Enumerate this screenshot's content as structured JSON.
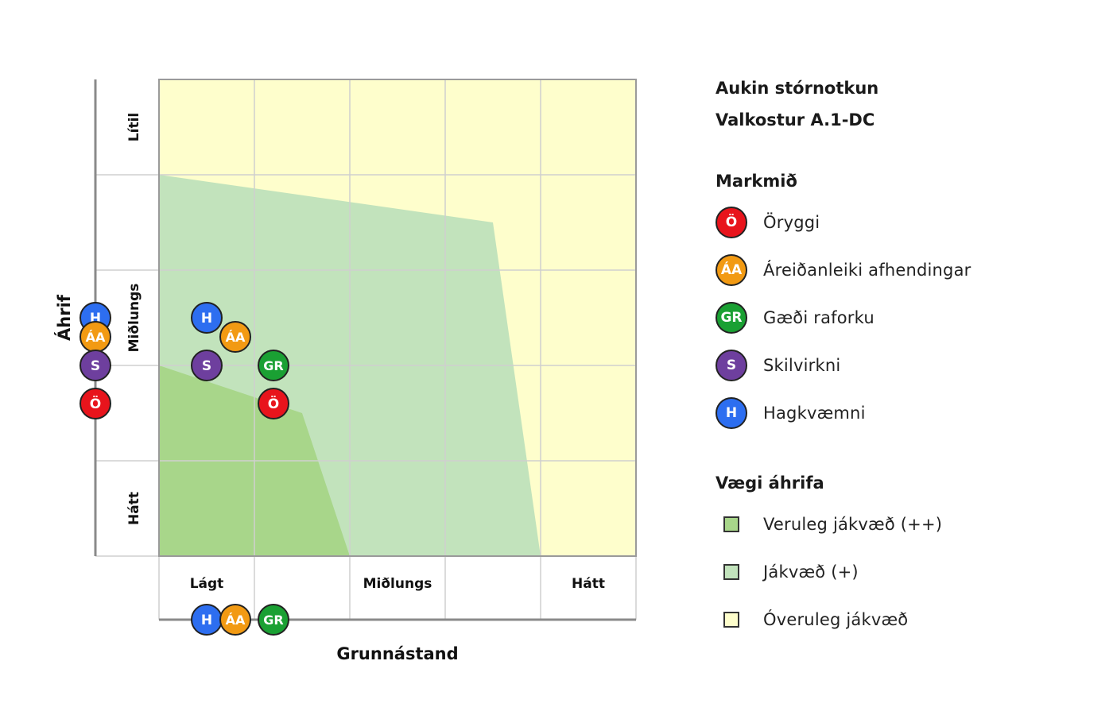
{
  "chart_data": {
    "type": "diagram",
    "x_axis_label": "Grunnástand",
    "y_axis_label": "Áhrif",
    "x_tick_labels": [
      "Lágt",
      "Miðlungs",
      "Hátt"
    ],
    "y_tick_labels": [
      "Lítil",
      "Miðlungs",
      "Hátt"
    ],
    "markers": [
      {
        "code": "H",
        "position": "left-axis"
      },
      {
        "code": "ÁA",
        "position": "left-axis"
      },
      {
        "code": "S",
        "position": "left-axis"
      },
      {
        "code": "Ö",
        "position": "left-axis"
      },
      {
        "code": "H",
        "position": "plot"
      },
      {
        "code": "ÁA",
        "position": "plot"
      },
      {
        "code": "S",
        "position": "plot"
      },
      {
        "code": "GR",
        "position": "plot"
      },
      {
        "code": "Ö",
        "position": "plot"
      },
      {
        "code": "H",
        "position": "bottom-axis"
      },
      {
        "code": "ÁA",
        "position": "bottom-axis"
      },
      {
        "code": "GR",
        "position": "bottom-axis"
      }
    ]
  },
  "legend": {
    "title_line1": "Aukin stórnotkun",
    "title_line2": "Valkostur A.1-DC",
    "markmid_title": "Markmið",
    "markmid_items": [
      {
        "code": "Ö",
        "label": "Öryggi",
        "color": "#e8141c"
      },
      {
        "code": "ÁA",
        "label": "Áreiðanleiki afhendingar",
        "color": "#f29a13"
      },
      {
        "code": "GR",
        "label": "Gæði raforku",
        "color": "#1aa033"
      },
      {
        "code": "S",
        "label": "Skilvirkni",
        "color": "#6e3f9e"
      },
      {
        "code": "H",
        "label": "Hagkvæmni",
        "color": "#2d6ef0"
      }
    ],
    "vaegi_title": "Vægi áhrifa",
    "vaegi_items": [
      {
        "label": "Veruleg jákvæð (++)",
        "color": "#a8d68a"
      },
      {
        "label": "Jákvæð (+)",
        "color": "#c2e3bc"
      },
      {
        "label": "Óveruleg jákvæð",
        "color": "#fefecc"
      }
    ]
  }
}
